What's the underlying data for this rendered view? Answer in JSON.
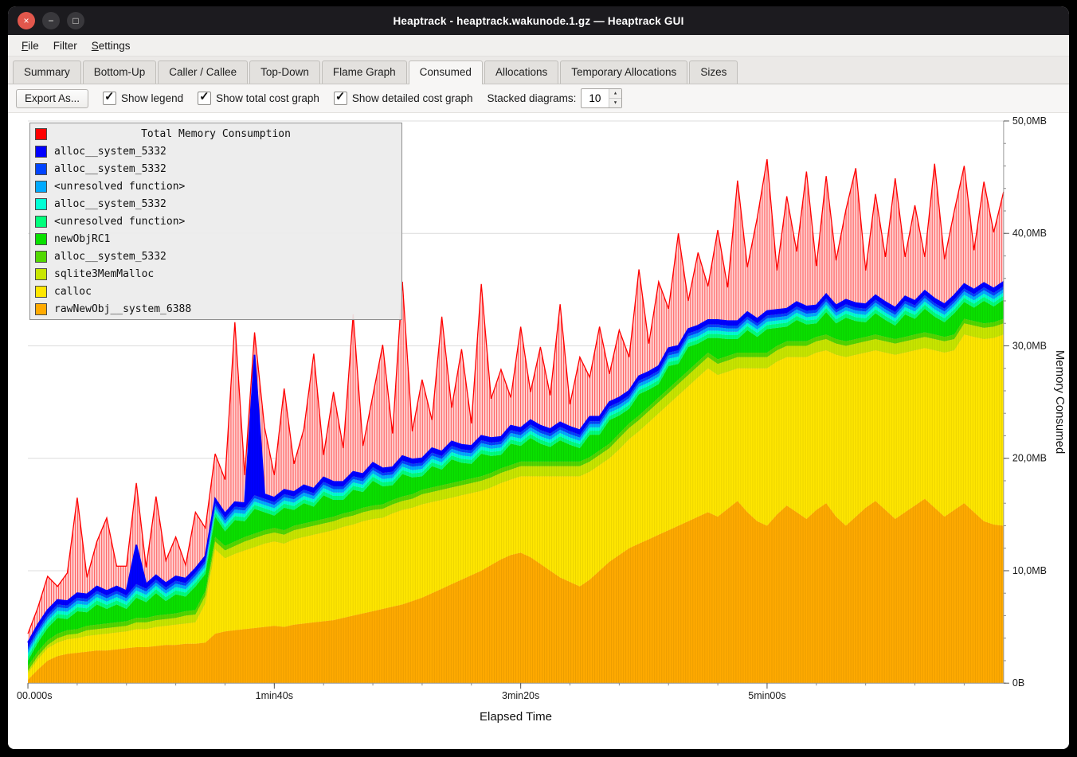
{
  "window": {
    "title": "Heaptrack - heaptrack.wakunode.1.gz — Heaptrack GUI",
    "icons": {
      "close_icon": "×",
      "minimize_icon": "−",
      "maximize_icon": "□"
    }
  },
  "menu": {
    "items": [
      {
        "accel": "F",
        "rest": "ile"
      },
      {
        "accel": "",
        "rest": "Filter"
      },
      {
        "accel": "S",
        "rest": "ettings"
      }
    ]
  },
  "tabs": {
    "items": [
      {
        "label": "Summary"
      },
      {
        "label": "Bottom-Up"
      },
      {
        "label": "Caller / Callee"
      },
      {
        "label": "Top-Down"
      },
      {
        "label": "Flame Graph"
      },
      {
        "label": "Consumed"
      },
      {
        "label": "Allocations"
      },
      {
        "label": "Temporary Allocations"
      },
      {
        "label": "Sizes"
      }
    ],
    "active": "Consumed"
  },
  "toolbar": {
    "export_label": "Export As...",
    "checkboxes": [
      {
        "label": "Show legend",
        "checked": true
      },
      {
        "label": "Show total cost graph",
        "checked": true
      },
      {
        "label": "Show detailed cost graph",
        "checked": true
      }
    ],
    "check_icon": "✓",
    "stacked_label": "Stacked diagrams:",
    "stacked_value": "10",
    "spin_up_icon": "▲",
    "spin_down_icon": "▼"
  },
  "chart_data": {
    "type": "area",
    "title": "Total Memory Consumption",
    "xlabel": "Elapsed Time",
    "ylabel": "Memory Consumed",
    "ylim_mb": [
      0,
      50
    ],
    "x_step_seconds": 4,
    "x_ticks": [
      {
        "seconds": 0,
        "label": "00.000s"
      },
      {
        "seconds": 100,
        "label": "1min40s"
      },
      {
        "seconds": 200,
        "label": "3min20s"
      },
      {
        "seconds": 300,
        "label": "5min00s"
      }
    ],
    "y_ticks": [
      {
        "mb": 0,
        "label": "0B"
      },
      {
        "mb": 10,
        "label": "10,0MB"
      },
      {
        "mb": 20,
        "label": "20,0MB"
      },
      {
        "mb": 30,
        "label": "30,0MB"
      },
      {
        "mb": 40,
        "label": "40,0MB"
      },
      {
        "mb": 50,
        "label": "50,0MB"
      }
    ],
    "legend": [
      {
        "label": "Total Memory Consumption",
        "color": "#ff0000"
      },
      {
        "label": "alloc__system_5332",
        "color": "#0000ff"
      },
      {
        "label": "alloc__system_5332",
        "color": "#0044ff"
      },
      {
        "label": "<unresolved function>",
        "color": "#00aaff"
      },
      {
        "label": "alloc__system_5332",
        "color": "#00ffd4"
      },
      {
        "label": "<unresolved function>",
        "color": "#00ff7c"
      },
      {
        "label": "newObjRC1",
        "color": "#0ae000"
      },
      {
        "label": "alloc__system_5332",
        "color": "#52d800"
      },
      {
        "label": "sqlite3MemMalloc",
        "color": "#c8e600"
      },
      {
        "label": "calloc",
        "color": "#ffe600"
      },
      {
        "label": "rawNewObj__system_6388",
        "color": "#ffaa00"
      }
    ],
    "stacked_series": [
      {
        "name": "rawNewObj__system_6388",
        "color": "#ffaa00",
        "values": [
          0.3,
          1.2,
          2.0,
          2.4,
          2.6,
          2.7,
          2.8,
          2.9,
          2.9,
          3.0,
          3.1,
          3.2,
          3.2,
          3.3,
          3.4,
          3.4,
          3.5,
          3.5,
          3.6,
          4.4,
          4.6,
          4.7,
          4.8,
          4.9,
          5.0,
          5.1,
          5.0,
          5.2,
          5.3,
          5.4,
          5.5,
          5.6,
          5.8,
          6.0,
          6.2,
          6.4,
          6.6,
          6.8,
          7.0,
          7.3,
          7.6,
          8.0,
          8.4,
          8.8,
          9.2,
          9.6,
          10.0,
          10.5,
          11.0,
          11.4,
          11.6,
          11.2,
          10.6,
          10.0,
          9.4,
          9.0,
          8.6,
          9.2,
          10.0,
          10.8,
          11.4,
          12.0,
          12.4,
          12.8,
          13.2,
          13.6,
          14.0,
          14.4,
          14.8,
          15.2,
          14.8,
          15.5,
          16.2,
          15.2,
          14.4,
          14.0,
          15.0,
          15.8,
          15.2,
          14.6,
          15.4,
          16.0,
          14.8,
          14.0,
          14.8,
          15.6,
          16.2,
          15.4,
          14.6,
          15.2,
          15.8,
          16.4,
          15.6,
          14.8,
          15.4,
          16.0,
          15.2,
          14.4,
          14.1,
          14.0
        ]
      },
      {
        "name": "calloc",
        "color": "#ffe600",
        "values": [
          0.6,
          0.9,
          1.1,
          1.2,
          1.3,
          1.3,
          1.4,
          1.4,
          1.5,
          1.5,
          1.5,
          1.6,
          1.6,
          1.7,
          1.7,
          1.8,
          1.8,
          1.9,
          3.5,
          7.5,
          6.5,
          6.8,
          7.0,
          7.2,
          7.4,
          7.5,
          7.4,
          7.6,
          7.7,
          7.8,
          7.9,
          8.0,
          8.1,
          8.1,
          8.2,
          8.2,
          8.1,
          8.3,
          8.4,
          8.3,
          8.3,
          8.1,
          7.9,
          7.7,
          7.5,
          7.3,
          7.1,
          6.9,
          6.8,
          6.7,
          6.8,
          7.2,
          7.8,
          8.4,
          9.0,
          9.4,
          9.8,
          9.6,
          9.4,
          9.2,
          9.4,
          9.7,
          10.0,
          10.4,
          10.8,
          11.2,
          11.6,
          12.0,
          12.4,
          12.8,
          12.6,
          12.2,
          11.8,
          12.8,
          13.6,
          14.0,
          13.6,
          13.2,
          13.8,
          14.4,
          14.0,
          13.6,
          14.4,
          15.0,
          14.4,
          13.8,
          13.4,
          14.0,
          14.6,
          14.2,
          13.8,
          13.4,
          14.0,
          14.6,
          14.2,
          15.0,
          15.6,
          16.2,
          16.6,
          17.0
        ]
      },
      {
        "name": "sqlite3MemMalloc",
        "color": "#c8e600",
        "values": [
          0.2,
          0.3,
          0.3,
          0.4,
          0.4,
          0.4,
          0.5,
          0.5,
          0.5,
          0.5,
          0.5,
          0.6,
          0.6,
          0.6,
          0.6,
          0.6,
          0.7,
          0.7,
          0.7,
          0.7,
          0.7,
          0.7,
          0.8,
          0.8,
          0.8,
          0.8,
          0.8,
          0.8,
          0.8,
          0.8,
          0.8,
          0.8,
          0.8,
          0.8,
          0.8,
          0.8,
          0.8,
          0.8,
          0.8,
          0.8,
          0.9,
          0.9,
          0.9,
          0.9,
          0.9,
          0.9,
          0.9,
          0.9,
          0.9,
          0.9,
          0.9,
          0.9,
          0.9,
          0.9,
          0.9,
          0.9,
          0.9,
          0.9,
          0.9,
          0.9,
          1.0,
          1.0,
          1.0,
          1.0,
          1.0,
          1.0,
          1.0,
          1.0,
          1.0,
          1.0,
          1.0,
          1.0,
          1.0,
          1.0,
          1.0,
          1.0,
          1.0,
          1.0,
          1.0,
          1.0,
          1.0,
          1.0,
          1.0,
          1.0,
          1.0,
          1.0,
          1.0,
          1.0,
          1.0,
          1.0,
          1.0,
          1.0,
          1.0,
          1.0,
          1.0,
          1.0,
          1.0,
          1.0,
          1.0,
          1.0
        ]
      },
      {
        "name": "alloc__system_5332",
        "color": "#52d800",
        "constant": 0.4
      },
      {
        "name": "newObjRC1",
        "color": "#0ae000",
        "values": [
          0.5,
          0.8,
          1.1,
          1.4,
          1.0,
          1.6,
          1.2,
          1.8,
          1.3,
          1.6,
          1.1,
          1.8,
          1.4,
          2.0,
          1.2,
          1.7,
          1.3,
          2.1,
          1.5,
          1.8,
          1.3,
          1.9,
          1.4,
          2.2,
          1.6,
          1.1,
          2.0,
          1.4,
          1.8,
          1.3,
          2.1,
          1.5,
          1.2,
          1.9,
          1.4,
          2.2,
          1.6,
          1.3,
          2.0,
          1.5,
          1.2,
          1.9,
          1.4,
          2.1,
          1.6,
          1.3,
          2.0,
          1.5,
          1.2,
          1.9,
          1.4,
          2.1,
          1.6,
          1.3,
          1.9,
          1.5,
          1.2,
          2.0,
          1.4,
          2.1,
          1.6,
          1.3,
          1.9,
          1.5,
          1.2,
          2.0,
          1.4,
          2.1,
          1.6,
          1.3,
          1.9,
          1.5,
          1.2,
          2.0,
          1.4,
          2.1,
          1.6,
          1.3,
          1.9,
          1.5,
          1.2,
          2.0,
          1.4,
          2.1,
          1.6,
          1.3,
          1.9,
          1.5,
          1.2,
          2.0,
          1.4,
          2.1,
          1.6,
          1.3,
          1.9,
          1.5,
          1.2,
          2.0,
          1.4,
          1.7
        ]
      },
      {
        "name": "<unresolved function>",
        "color": "#00ff7c",
        "constant": 0.35
      },
      {
        "name": "alloc__system_5332",
        "color": "#00ffd4",
        "constant": 0.3
      },
      {
        "name": "<unresolved function>",
        "color": "#00aaff",
        "constant": 0.3
      },
      {
        "name": "alloc__system_5332",
        "color": "#0044ff",
        "constant": 0.25
      },
      {
        "name": "alloc__system_5332",
        "color": "#0000ff",
        "values": [
          0.4,
          0.4,
          0.4,
          0.4,
          0.4,
          0.4,
          0.4,
          0.4,
          0.4,
          0.4,
          0.4,
          3.5,
          0.4,
          0.4,
          0.4,
          0.4,
          0.4,
          0.4,
          0.4,
          0.4,
          0.4,
          0.4,
          0.4,
          12.5,
          0.4,
          0.4,
          0.4,
          0.4,
          0.4,
          0.4,
          0.4,
          0.4,
          0.4,
          0.4,
          0.4,
          0.4,
          0.4,
          0.4,
          0.4,
          0.4,
          0.4,
          0.4,
          0.4,
          0.4,
          0.4,
          0.4,
          0.4,
          0.4,
          0.4,
          0.4,
          0.4,
          0.4,
          0.4,
          0.4,
          0.4,
          0.4,
          0.4,
          0.4,
          0.4,
          0.4,
          0.4,
          0.4,
          0.4,
          0.4,
          0.4,
          0.4,
          0.4,
          0.4,
          0.4,
          0.4,
          0.4,
          0.4,
          0.4,
          0.4,
          0.4,
          0.4,
          0.4,
          0.4,
          0.4,
          0.4,
          0.4,
          0.4,
          0.4,
          0.4,
          0.4,
          0.4,
          0.4,
          0.4,
          0.4,
          0.4,
          0.4,
          0.4,
          0.4,
          0.4,
          0.4,
          0.4,
          0.4,
          0.4,
          0.4,
          0.4
        ]
      }
    ],
    "total_extra": {
      "name": "Total Memory Consumption",
      "color": "#ff0000",
      "values": [
        0.8,
        1.5,
        3.0,
        1.2,
        2.5,
        8.5,
        1.5,
        4.0,
        6.5,
        1.8,
        2.2,
        5.5,
        1.5,
        7.0,
        2.0,
        3.5,
        1.2,
        5.0,
        2.5,
        4.0,
        3.0,
        16.0,
        2.5,
        2.0,
        6.0,
        2.0,
        9.0,
        2.5,
        5.0,
        12.0,
        2.0,
        8.0,
        3.0,
        14.0,
        2.5,
        6.0,
        11.0,
        3.0,
        15.5,
        2.5,
        7.0,
        2.5,
        12.0,
        3.0,
        8.5,
        2.0,
        13.5,
        3.5,
        6.0,
        2.5,
        9.0,
        2.5,
        7.0,
        3.0,
        10.5,
        2.0,
        6.5,
        3.5,
        8.0,
        2.5,
        6.0,
        3.0,
        9.5,
        2.5,
        7.5,
        3.5,
        10.0,
        2.5,
        6.5,
        3.0,
        8.0,
        3.0,
        12.5,
        4.0,
        9.0,
        13.5,
        3.5,
        10.0,
        4.5,
        12.0,
        3.5,
        10.5,
        4.0,
        8.0,
        12.0,
        3.0,
        9.0,
        4.0,
        11.5,
        3.5,
        8.5,
        3.0,
        12.0,
        4.0,
        7.5,
        10.5,
        3.5,
        9.0,
        5.0,
        8.0
      ]
    }
  }
}
